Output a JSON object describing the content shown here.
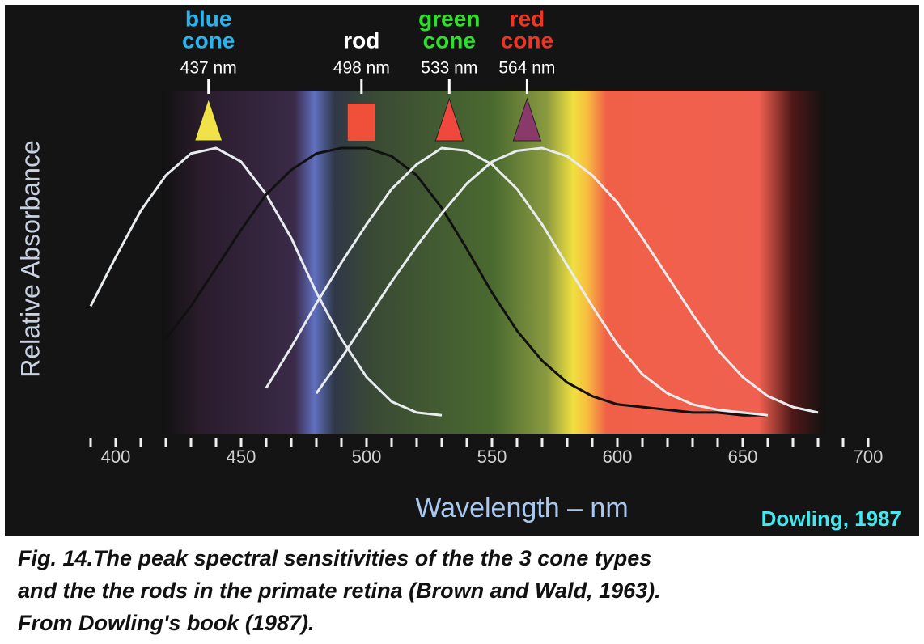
{
  "chart_data": {
    "type": "line",
    "ylabel": "Relative Absorbance",
    "xlabel": "Wavelength – nm",
    "xlim": [
      380,
      710
    ],
    "ylim": [
      0,
      1
    ],
    "xticks": [
      400,
      450,
      500,
      550,
      600,
      650,
      700
    ],
    "xminor_ticks": [
      390,
      400,
      410,
      420,
      430,
      440,
      450,
      460,
      470,
      480,
      490,
      500,
      510,
      520,
      530,
      540,
      550,
      560,
      570,
      580,
      590,
      600,
      610,
      620,
      630,
      640,
      650,
      660,
      670,
      680,
      690,
      700
    ],
    "x": [
      390,
      400,
      410,
      420,
      430,
      440,
      450,
      460,
      470,
      480,
      490,
      500,
      510,
      520,
      530,
      540,
      550,
      560,
      570,
      580,
      590,
      600,
      610,
      620,
      630,
      640,
      650,
      660,
      670,
      680
    ],
    "series": [
      {
        "name_lines": [
          "blue",
          "cone"
        ],
        "label_color": "#2ab4ee",
        "color": "#e8ecef",
        "peak": 437,
        "peak_label": "437 nm",
        "marker": "triangle",
        "marker_color": "#f2e24a",
        "values": [
          0.42,
          0.6,
          0.77,
          0.9,
          0.98,
          1.0,
          0.95,
          0.83,
          0.67,
          0.47,
          0.3,
          0.16,
          0.07,
          0.03,
          0.02,
          null,
          null,
          null,
          null,
          null,
          null,
          null,
          null,
          null,
          null,
          null,
          null,
          null,
          null,
          null
        ]
      },
      {
        "name_lines": [
          "rod"
        ],
        "label_color": "#ffffff",
        "color": "#111111",
        "peak": 498,
        "peak_label": "498 nm",
        "marker": "square",
        "marker_color": "#f0503a",
        "values": [
          null,
          null,
          null,
          0.3,
          0.42,
          0.56,
          0.7,
          0.83,
          0.92,
          0.98,
          1.0,
          1.0,
          0.97,
          0.9,
          0.78,
          0.63,
          0.47,
          0.33,
          0.22,
          0.14,
          0.09,
          0.06,
          0.05,
          0.04,
          0.03,
          0.03,
          0.02,
          0.02,
          null,
          null
        ]
      },
      {
        "name_lines": [
          "green",
          "cone"
        ],
        "label_color": "#2ee02a",
        "color": "#e8ecef",
        "peak": 533,
        "peak_label": "533 nm",
        "marker": "triangle",
        "marker_color": "#f0483c",
        "values": [
          null,
          null,
          null,
          null,
          null,
          null,
          null,
          0.12,
          0.27,
          0.43,
          0.58,
          0.72,
          0.85,
          0.94,
          1.0,
          0.99,
          0.94,
          0.85,
          0.72,
          0.57,
          0.42,
          0.28,
          0.17,
          0.1,
          0.06,
          0.04,
          0.03,
          0.02,
          null,
          null
        ]
      },
      {
        "name_lines": [
          "red",
          "cone"
        ],
        "label_color": "#ee3424",
        "color": "#e8ecef",
        "peak": 564,
        "peak_label": "564 nm",
        "marker": "triangle",
        "marker_color": "#8a3a6a",
        "values": [
          null,
          null,
          null,
          null,
          null,
          null,
          null,
          null,
          null,
          0.1,
          0.23,
          0.37,
          0.51,
          0.64,
          0.76,
          0.87,
          0.95,
          0.99,
          1.0,
          0.97,
          0.9,
          0.8,
          0.67,
          0.53,
          0.39,
          0.26,
          0.16,
          0.09,
          0.05,
          0.03
        ]
      }
    ]
  },
  "credit": "Dowling, 1987",
  "caption": [
    "Fig. 14.The peak spectral sensitivities of the the 3 cone types",
    "and the the rods in the primate retina (Brown and Wald, 1963).",
    "From Dowling's book (1987)."
  ]
}
